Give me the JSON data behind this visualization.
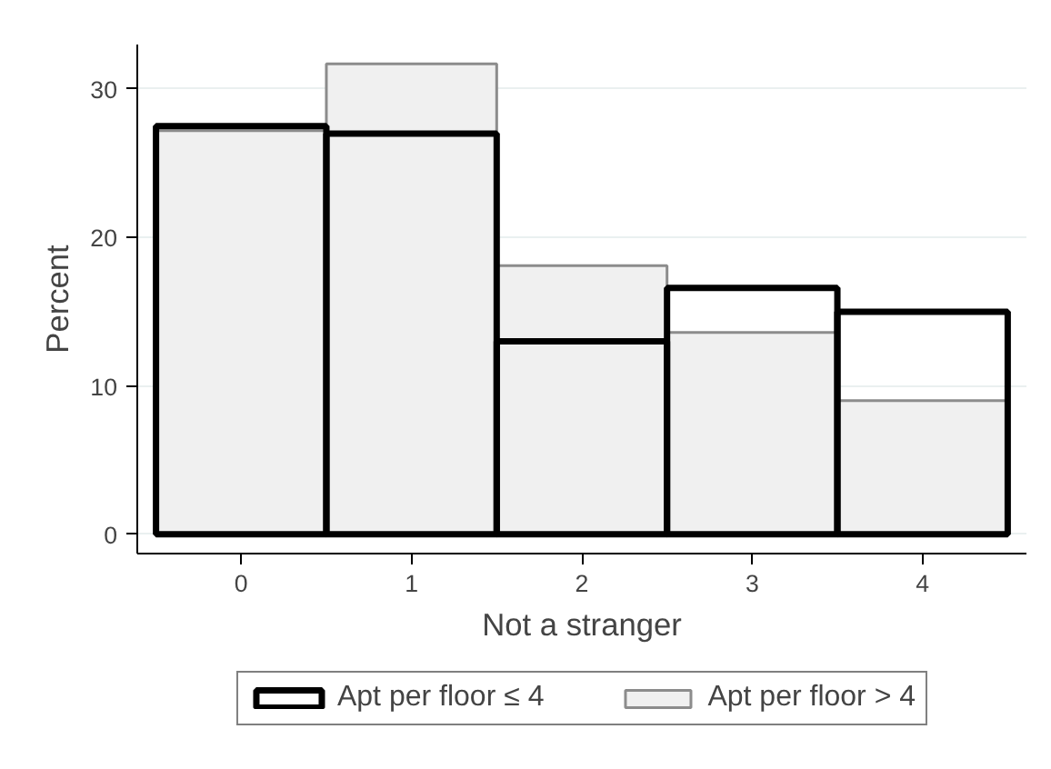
{
  "chart_data": {
    "type": "histogram",
    "xlabel": "Not a stranger",
    "ylabel": "Percent",
    "bins": [
      -0.5,
      0.5,
      1.5,
      2.5,
      3.5,
      4.5
    ],
    "series": [
      {
        "name": "Apt per floor ≤ 4",
        "color": "#000000",
        "values": [
          27.5,
          27.0,
          13.0,
          16.6,
          15.0
        ]
      },
      {
        "name": "Apt per floor > 4",
        "color": "#f0f0f0",
        "values": [
          27.2,
          31.7,
          18.1,
          13.6,
          9.0
        ]
      }
    ],
    "xlim": [
      -0.61,
      4.61
    ],
    "ylim": [
      -1.3,
      33
    ],
    "xticks": [
      0,
      1,
      2,
      3,
      4
    ],
    "yticks": [
      0,
      10,
      20,
      30
    ],
    "grid": "y",
    "legend": "bottom"
  }
}
